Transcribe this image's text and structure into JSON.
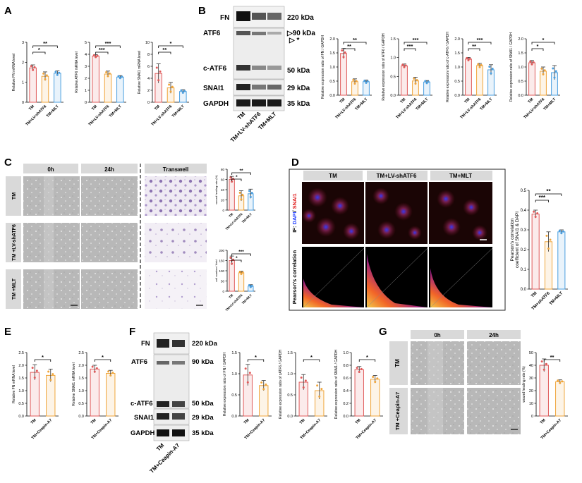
{
  "figure": {
    "panel_letters": [
      "A",
      "B",
      "C",
      "D",
      "E",
      "F",
      "G"
    ]
  },
  "colors": {
    "TM": "#e05a5a",
    "LV": "#f0a53a",
    "MLT": "#4a9fe0",
    "CA7": "#f0a53a"
  },
  "A": {
    "groups": [
      "TM",
      "TM+LV-shATF6",
      "TM+MLT"
    ],
    "charts": [
      {
        "ylabel": "Relative FN mRNA level",
        "yticks": [
          "0",
          "1",
          "2",
          "3"
        ],
        "ylim": [
          0,
          3
        ],
        "values": [
          1.72,
          1.3,
          1.45
        ],
        "errors": [
          0.15,
          0.22,
          0.12
        ],
        "sig": [
          {
            "pair": [
              0,
              1
            ],
            "label": "*"
          },
          {
            "pair": [
              0,
              2
            ],
            "label": "**"
          }
        ]
      },
      {
        "ylabel": "Relative ATF6 mRNA level",
        "yticks": [
          "0",
          "1",
          "2",
          "3",
          "4",
          "5"
        ],
        "ylim": [
          0,
          5
        ],
        "values": [
          3.85,
          2.35,
          2.1
        ],
        "errors": [
          0.12,
          0.25,
          0.12
        ],
        "sig": [
          {
            "pair": [
              0,
              1
            ],
            "label": "***"
          },
          {
            "pair": [
              0,
              2
            ],
            "label": "***"
          }
        ]
      },
      {
        "ylabel": "Relative SNAI1 mRNA level",
        "yticks": [
          "0",
          "2",
          "4",
          "6",
          "8",
          "10"
        ],
        "ylim": [
          0,
          10
        ],
        "values": [
          4.8,
          2.4,
          1.8
        ],
        "errors": [
          1.6,
          0.9,
          0.3
        ],
        "sig": [
          {
            "pair": [
              0,
              1
            ],
            "label": "**"
          },
          {
            "pair": [
              0,
              2
            ],
            "label": "*"
          }
        ]
      }
    ]
  },
  "B": {
    "blot_labels": [
      "FN",
      "ATF6",
      "c-ATF6",
      "SNAI1",
      "GAPDH"
    ],
    "kda_labels": [
      "220 kDa",
      "90 kDa",
      "*",
      "50 kDa",
      "29 kDa",
      "35 kDa"
    ],
    "groups": [
      "TM",
      "TM+LV-shATF6",
      "TM+MLT"
    ],
    "charts": [
      {
        "ylabel": "Relative expression ratio of FN / GAPDH",
        "yticks": [
          "0.0",
          "0.5",
          "1.0",
          "1.5",
          "2.0"
        ],
        "ylim": [
          0,
          2
        ],
        "values": [
          1.48,
          0.48,
          0.48
        ],
        "errors": [
          0.18,
          0.1,
          0.06
        ],
        "sig": [
          {
            "pair": [
              0,
              1
            ],
            "label": "**"
          },
          {
            "pair": [
              0,
              2
            ],
            "label": "**"
          }
        ]
      },
      {
        "ylabel": "Relative expression ratio of ATF6 / GAPDH",
        "yticks": [
          "0.0",
          "0.5",
          "1.0",
          "1.5"
        ],
        "ylim": [
          0,
          1.5
        ],
        "values": [
          0.78,
          0.38,
          0.35
        ],
        "errors": [
          0.05,
          0.1,
          0.04
        ],
        "sig": [
          {
            "pair": [
              0,
              1
            ],
            "label": "***"
          },
          {
            "pair": [
              0,
              2
            ],
            "label": "***"
          }
        ]
      },
      {
        "ylabel": "Relative expression ratio of c-ATF6 / GAPDH",
        "yticks": [
          "0.0",
          "0.5",
          "1.0",
          "1.5",
          "2.0"
        ],
        "ylim": [
          0,
          2
        ],
        "values": [
          1.28,
          1.05,
          0.9
        ],
        "errors": [
          0.06,
          0.08,
          0.18
        ],
        "sig": [
          {
            "pair": [
              0,
              1
            ],
            "label": "**"
          },
          {
            "pair": [
              0,
              2
            ],
            "label": "***"
          }
        ]
      },
      {
        "ylabel": "Relative expression ratio of SNAI1 / GAPDH",
        "yticks": [
          "0.0",
          "0.5",
          "1.0",
          "1.5",
          "2.0"
        ],
        "ylim": [
          0,
          2
        ],
        "values": [
          1.15,
          0.85,
          0.8
        ],
        "errors": [
          0.08,
          0.15,
          0.25
        ],
        "sig": [
          {
            "pair": [
              0,
              1
            ],
            "label": "*"
          },
          {
            "pair": [
              0,
              2
            ],
            "label": "*"
          }
        ]
      }
    ]
  },
  "C": {
    "col_headers": [
      "0h",
      "24h",
      "Transwell"
    ],
    "row_labels": [
      "TM",
      "TM +LV-shATF6",
      "TM +MLT"
    ],
    "groups": [
      "TM",
      "TM+LV-shATF6",
      "TM+MLT"
    ],
    "charts": [
      {
        "ylabel": "wound healing rate (%)",
        "yticks": [
          "0",
          "20",
          "40",
          "60",
          "80"
        ],
        "ylim": [
          0,
          80
        ],
        "values": [
          60,
          28,
          32
        ],
        "errors": [
          6,
          10,
          9
        ],
        "sig": [
          {
            "pair": [
              0,
              1
            ],
            "label": "*"
          },
          {
            "pair": [
              0,
              2
            ],
            "label": "**"
          }
        ]
      },
      {
        "ylabel": "cell number / field",
        "yticks": [
          "0",
          "50",
          "100",
          "150",
          "200"
        ],
        "ylim": [
          0,
          200
        ],
        "values": [
          150,
          90,
          25
        ],
        "errors": [
          22,
          8,
          7
        ],
        "sig": [
          {
            "pair": [
              0,
              1
            ],
            "label": "*"
          },
          {
            "pair": [
              0,
              2
            ],
            "label": "***"
          }
        ]
      }
    ]
  },
  "D": {
    "col_headers": [
      "TM",
      "TM+LV-shATF6",
      "TM+MLT"
    ],
    "row_label_top_prefix": "IF: ",
    "row_label_top_dapi": "DAPI",
    "row_label_top_sep": "/ ",
    "row_label_top_snai": "SNAI1",
    "row_label_bottom": "Pearson's correlation",
    "groups": [
      "TM",
      "TM+shATF6",
      "TM+MLT"
    ],
    "chart": {
      "ylabel_line1": "Pearson's correlation",
      "ylabel_line2": "coefficient of SNAI1 & DAPI",
      "yticks": [
        "0.0",
        "0.1",
        "0.2",
        "0.3",
        "0.4",
        "0.5"
      ],
      "ylim": [
        0,
        0.5
      ],
      "values": [
        0.38,
        0.24,
        0.29
      ],
      "errors": [
        0.02,
        0.05,
        0.01
      ],
      "sig": [
        {
          "pair": [
            0,
            1
          ],
          "label": "***"
        },
        {
          "pair": [
            0,
            2
          ],
          "label": "**"
        }
      ]
    }
  },
  "E": {
    "groups": [
      "TM",
      "TM+Ceapin-A7"
    ],
    "charts": [
      {
        "ylabel": "Relative FN mRNA level",
        "yticks": [
          "0.0",
          "0.5",
          "1.0",
          "1.5",
          "2.0",
          "2.5"
        ],
        "ylim": [
          0,
          2.5
        ],
        "values": [
          1.72,
          1.6
        ],
        "errors": [
          0.3,
          0.25
        ],
        "sig": [
          {
            "pair": [
              0,
              1
            ],
            "label": "*"
          }
        ]
      },
      {
        "ylabel": "Relative SNAI1 mRNA level",
        "yticks": [
          "0.0",
          "0.5",
          "1.0",
          "1.5",
          "2.0",
          "2.5"
        ],
        "ylim": [
          0,
          2.5
        ],
        "values": [
          1.85,
          1.68
        ],
        "errors": [
          0.15,
          0.12
        ],
        "sig": [
          {
            "pair": [
              0,
              1
            ],
            "label": "*"
          }
        ]
      }
    ]
  },
  "F": {
    "blot_labels": [
      "FN",
      "ATF6",
      "c-ATF6",
      "SNAI1",
      "GAPDH"
    ],
    "kda_labels": [
      "220 kDa",
      "90 kDa",
      "50 kDa",
      "29 kDa",
      "35 kDa"
    ],
    "groups": [
      "TM",
      "TM+Ceapin-A7"
    ],
    "charts": [
      {
        "ylabel": "Relative expression ratio of FN / GAPDH",
        "yticks": [
          "0.0",
          "0.5",
          "1.0",
          "1.5"
        ],
        "ylim": [
          0,
          1.5
        ],
        "values": [
          0.97,
          0.72
        ],
        "errors": [
          0.25,
          0.12
        ],
        "sig": [
          {
            "pair": [
              0,
              1
            ],
            "label": "*"
          }
        ]
      },
      {
        "ylabel": "Relative expression ratio of cATF6 / GAPDH",
        "yticks": [
          "0.0",
          "0.5",
          "1.0",
          "1.5"
        ],
        "ylim": [
          0,
          1.5
        ],
        "values": [
          0.8,
          0.6
        ],
        "errors": [
          0.18,
          0.2
        ],
        "sig": [
          {
            "pair": [
              0,
              1
            ],
            "label": "*"
          }
        ]
      },
      {
        "ylabel": "Relative expression ratio of SNAI1 / GAPDH",
        "yticks": [
          "0.0",
          "0.2",
          "0.4",
          "0.6",
          "0.8",
          "1.0"
        ],
        "ylim": [
          0,
          1
        ],
        "values": [
          0.73,
          0.58
        ],
        "errors": [
          0.05,
          0.06
        ],
        "sig": [
          {
            "pair": [
              0,
              1
            ],
            "label": "*"
          }
        ]
      }
    ]
  },
  "G": {
    "col_headers": [
      "0h",
      "24h"
    ],
    "row_labels": [
      "TM",
      "TM +Ceapin-A7"
    ],
    "groups": [
      "TM",
      "TM+Ceapin-A7"
    ],
    "chart": {
      "ylabel": "wound healing rate (%)",
      "yticks": [
        "0",
        "10",
        "20",
        "30",
        "40",
        "50"
      ],
      "ylim": [
        0,
        50
      ],
      "values": [
        40,
        27
      ],
      "errors": [
        5,
        1.5
      ],
      "sig": [
        {
          "pair": [
            0,
            1
          ],
          "label": "**"
        }
      ]
    }
  }
}
